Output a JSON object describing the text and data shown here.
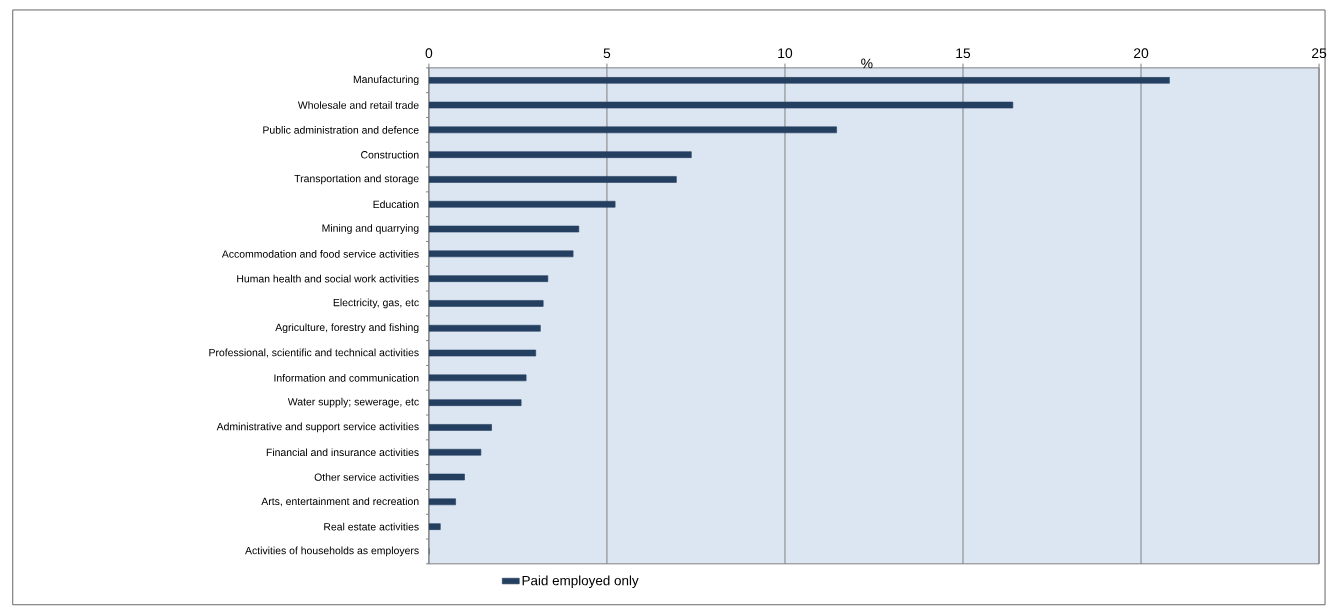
{
  "chart_data": {
    "type": "bar",
    "orientation": "horizontal",
    "xlabel": "%",
    "categories": [
      "Manufacturing",
      "Wholesale and retail trade",
      "Public administration and defence",
      "Construction",
      "Transportation and storage",
      "Education",
      "Mining and quarrying",
      "Accommodation and food service activities",
      "Human health and social work activities",
      "Electricity, gas, etc",
      "Agriculture, forestry and fishing",
      "Professional, scientific and technical activities",
      "Information and communication",
      "Water supply; sewerage, etc",
      "Administrative and support service activities",
      "Financial and insurance activities",
      "Other service activities",
      "Arts, entertainment and recreation",
      "Real estate activities",
      "Activities of households as employers"
    ],
    "series": [
      {
        "name": "Paid employed only",
        "color": "#243f60",
        "values": [
          20.8,
          16.4,
          11.45,
          7.37,
          6.95,
          5.23,
          4.21,
          4.05,
          3.34,
          3.21,
          3.13,
          3.0,
          2.73,
          2.59,
          1.76,
          1.46,
          1.0,
          0.75,
          0.32,
          0
        ]
      }
    ],
    "xlim": [
      0,
      25
    ],
    "xticks": [
      0,
      5,
      10,
      15,
      20,
      25
    ],
    "grid": "x",
    "legend": "bottom"
  }
}
